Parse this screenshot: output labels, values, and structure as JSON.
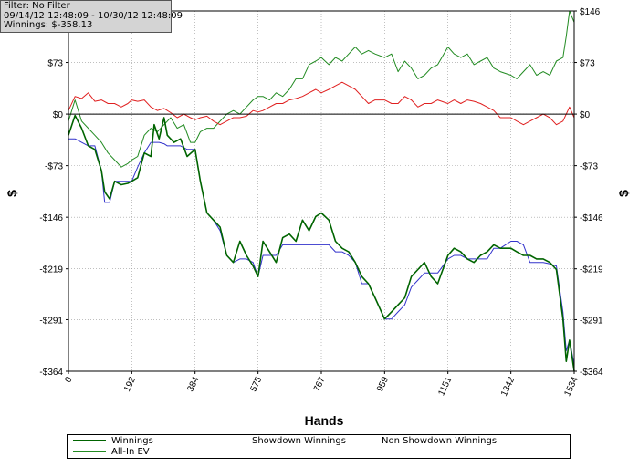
{
  "info": {
    "filter": "Filter: No Filter",
    "date_range": "09/14/12 12:48:09 - 10/30/12 12:48:09",
    "winnings": "Winnings: $-358.13"
  },
  "chart_data": {
    "type": "line",
    "title": "",
    "xlabel": "Hands",
    "ylabel": "$",
    "xlim": [
      0,
      1534
    ],
    "ylim": [
      -364,
      146
    ],
    "x_ticks": [
      0,
      192,
      384,
      575,
      767,
      959,
      1151,
      1342,
      1534
    ],
    "y_ticks": [
      146,
      73,
      0,
      -73,
      -146,
      -219,
      -291,
      -364
    ],
    "y_tick_labels": [
      "$146",
      "$73",
      "$0",
      "-$73",
      "-$146",
      "-$219",
      "-$291",
      "-$364"
    ],
    "grid": true,
    "legend_position": "bottom",
    "colors": {
      "winnings": "#006400",
      "showdown": "#3333cc",
      "non_showdown": "#e02020",
      "allin_ev": "#228b22",
      "grid": "#999999",
      "zero_line": "#000000"
    },
    "series": [
      {
        "name": "Winnings",
        "x": [
          0,
          20,
          40,
          60,
          80,
          100,
          110,
          125,
          140,
          160,
          180,
          192,
          210,
          230,
          250,
          260,
          275,
          290,
          300,
          320,
          340,
          360,
          384,
          400,
          420,
          440,
          460,
          480,
          500,
          520,
          540,
          560,
          575,
          590,
          610,
          630,
          650,
          670,
          690,
          710,
          730,
          750,
          767,
          790,
          810,
          830,
          850,
          870,
          890,
          910,
          930,
          959,
          980,
          1000,
          1020,
          1040,
          1060,
          1080,
          1100,
          1120,
          1151,
          1170,
          1190,
          1210,
          1230,
          1250,
          1270,
          1290,
          1310,
          1342,
          1360,
          1380,
          1400,
          1420,
          1440,
          1460,
          1480,
          1500,
          1510,
          1520,
          1534
        ],
        "y": [
          -30,
          -2,
          -20,
          -45,
          -50,
          -80,
          -110,
          -120,
          -95,
          -100,
          -98,
          -95,
          -90,
          -55,
          -60,
          -15,
          -35,
          -5,
          -30,
          -40,
          -35,
          -60,
          -50,
          -95,
          -140,
          -150,
          -160,
          -200,
          -210,
          -180,
          -200,
          -215,
          -230,
          -180,
          -195,
          -210,
          -175,
          -170,
          -180,
          -150,
          -165,
          -145,
          -140,
          -150,
          -180,
          -190,
          -195,
          -210,
          -230,
          -240,
          -260,
          -290,
          -280,
          -270,
          -260,
          -230,
          -220,
          -210,
          -230,
          -240,
          -200,
          -190,
          -195,
          -205,
          -210,
          -200,
          -195,
          -185,
          -190,
          -190,
          -195,
          -200,
          -200,
          -205,
          -205,
          -210,
          -220,
          -290,
          -350,
          -320,
          -364
        ]
      },
      {
        "name": "Showdown Winnings",
        "x": [
          0,
          20,
          40,
          60,
          80,
          100,
          110,
          125,
          140,
          160,
          180,
          192,
          210,
          230,
          250,
          260,
          275,
          290,
          300,
          320,
          340,
          360,
          384,
          400,
          420,
          440,
          460,
          480,
          500,
          520,
          540,
          560,
          575,
          590,
          610,
          630,
          650,
          670,
          690,
          710,
          730,
          750,
          767,
          790,
          810,
          830,
          850,
          870,
          890,
          910,
          930,
          959,
          980,
          1000,
          1020,
          1040,
          1060,
          1080,
          1100,
          1120,
          1151,
          1170,
          1190,
          1210,
          1230,
          1250,
          1270,
          1290,
          1310,
          1342,
          1360,
          1380,
          1400,
          1420,
          1440,
          1460,
          1480,
          1500,
          1510,
          1520,
          1534
        ],
        "y": [
          -35,
          -35,
          -40,
          -45,
          -45,
          -80,
          -125,
          -125,
          -95,
          -95,
          -95,
          -95,
          -75,
          -55,
          -40,
          -40,
          -40,
          -42,
          -45,
          -45,
          -45,
          -50,
          -50,
          -95,
          -140,
          -150,
          -165,
          -200,
          -210,
          -205,
          -205,
          -210,
          -230,
          -200,
          -200,
          -200,
          -185,
          -185,
          -185,
          -185,
          -185,
          -185,
          -185,
          -185,
          -195,
          -195,
          -200,
          -210,
          -240,
          -240,
          -260,
          -290,
          -290,
          -280,
          -270,
          -245,
          -235,
          -225,
          -225,
          -225,
          -205,
          -200,
          -200,
          -205,
          -205,
          -205,
          -205,
          -190,
          -190,
          -180,
          -180,
          -185,
          -210,
          -210,
          -210,
          -212,
          -215,
          -280,
          -335,
          -320,
          -355
        ]
      },
      {
        "name": "Non Showdown Winnings",
        "x": [
          0,
          20,
          40,
          60,
          80,
          100,
          120,
          140,
          160,
          180,
          192,
          210,
          230,
          250,
          270,
          290,
          310,
          330,
          350,
          370,
          384,
          400,
          420,
          440,
          460,
          480,
          500,
          520,
          540,
          560,
          575,
          590,
          610,
          630,
          650,
          670,
          690,
          710,
          730,
          750,
          767,
          790,
          810,
          830,
          850,
          870,
          890,
          910,
          930,
          959,
          980,
          1000,
          1020,
          1040,
          1060,
          1080,
          1100,
          1120,
          1151,
          1170,
          1190,
          1210,
          1230,
          1250,
          1270,
          1290,
          1310,
          1342,
          1360,
          1380,
          1400,
          1420,
          1440,
          1460,
          1480,
          1500,
          1520,
          1534
        ],
        "y": [
          5,
          25,
          22,
          30,
          18,
          20,
          15,
          15,
          10,
          15,
          20,
          18,
          20,
          10,
          5,
          8,
          2,
          -5,
          0,
          -5,
          -8,
          -5,
          -3,
          -10,
          -15,
          -10,
          -5,
          -5,
          -3,
          5,
          3,
          5,
          10,
          15,
          15,
          20,
          22,
          25,
          30,
          35,
          30,
          35,
          40,
          45,
          40,
          35,
          25,
          15,
          20,
          20,
          15,
          15,
          25,
          20,
          10,
          15,
          15,
          20,
          15,
          20,
          15,
          20,
          18,
          15,
          10,
          5,
          -5,
          -5,
          -10,
          -15,
          -10,
          -5,
          0,
          -5,
          -15,
          -10,
          10,
          -5
        ]
      },
      {
        "name": "All-In EV",
        "x": [
          0,
          20,
          40,
          60,
          80,
          100,
          120,
          140,
          160,
          180,
          192,
          210,
          230,
          250,
          270,
          290,
          310,
          330,
          350,
          370,
          384,
          400,
          420,
          440,
          460,
          480,
          500,
          520,
          540,
          560,
          575,
          590,
          610,
          630,
          650,
          670,
          690,
          710,
          730,
          750,
          767,
          790,
          810,
          830,
          850,
          870,
          890,
          910,
          930,
          959,
          980,
          1000,
          1020,
          1040,
          1060,
          1080,
          1100,
          1120,
          1151,
          1170,
          1190,
          1210,
          1230,
          1250,
          1270,
          1290,
          1310,
          1342,
          1360,
          1380,
          1400,
          1420,
          1440,
          1460,
          1480,
          1500,
          1510,
          1520,
          1534
        ],
        "y": [
          -10,
          20,
          -10,
          -20,
          -30,
          -40,
          -55,
          -65,
          -75,
          -70,
          -65,
          -60,
          -30,
          -20,
          -25,
          -15,
          -5,
          -20,
          -15,
          -40,
          -40,
          -25,
          -20,
          -20,
          -10,
          0,
          5,
          0,
          10,
          20,
          25,
          25,
          20,
          30,
          25,
          35,
          50,
          50,
          70,
          75,
          80,
          70,
          80,
          75,
          85,
          95,
          85,
          90,
          85,
          80,
          85,
          60,
          75,
          65,
          50,
          55,
          65,
          70,
          95,
          85,
          80,
          85,
          70,
          75,
          80,
          65,
          60,
          55,
          50,
          60,
          70,
          55,
          60,
          55,
          75,
          80,
          110,
          146,
          130
        ]
      }
    ]
  },
  "legend": [
    {
      "key": "winnings",
      "label": "Winnings"
    },
    {
      "key": "showdown",
      "label": "Showdown Winnings"
    },
    {
      "key": "non_showdown",
      "label": "Non Showdown Winnings"
    },
    {
      "key": "allin_ev",
      "label": "All-In EV"
    }
  ]
}
